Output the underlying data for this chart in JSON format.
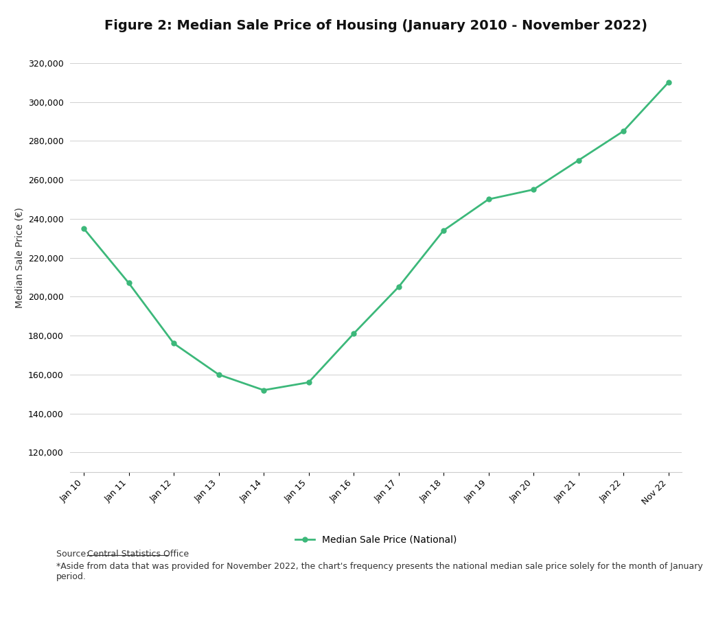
{
  "title": "Figure 2: Median Sale Price of Housing (January 2010 - November 2022)",
  "ylabel": "Median Sale Price (€)",
  "line_color": "#3cb87a",
  "background_color": "#ffffff",
  "x_labels": [
    "Jan 10",
    "Jan 11",
    "Jan 12",
    "Jan 13",
    "Jan 14",
    "Jan 15",
    "Jan 16",
    "Jan 17",
    "Jan 18",
    "Jan 19",
    "Jan 20",
    "Jan 21",
    "Jan 22",
    "Nov 22"
  ],
  "x_values": [
    0,
    1,
    2,
    3,
    4,
    5,
    6,
    7,
    8,
    9,
    10,
    11,
    12,
    13
  ],
  "y_values": [
    235000,
    207000,
    176000,
    160000,
    152000,
    156000,
    181000,
    205000,
    234000,
    250000,
    255000,
    270000,
    285000,
    310000
  ],
  "ylim": [
    110000,
    330000
  ],
  "yticks": [
    120000,
    140000,
    160000,
    180000,
    200000,
    220000,
    240000,
    260000,
    280000,
    300000,
    320000
  ],
  "legend_label": "Median Sale Price (National)",
  "source_prefix": "Source: ",
  "source_link": "Central Statistics Office",
  "footnote_text": "*Aside from data that was provided for November 2022, the chart's frequency presents the national median sale price solely for the month of January over a twelve year\nperiod.",
  "title_fontsize": 14,
  "axis_label_fontsize": 10,
  "tick_fontsize": 9,
  "legend_fontsize": 10,
  "source_fontsize": 9
}
